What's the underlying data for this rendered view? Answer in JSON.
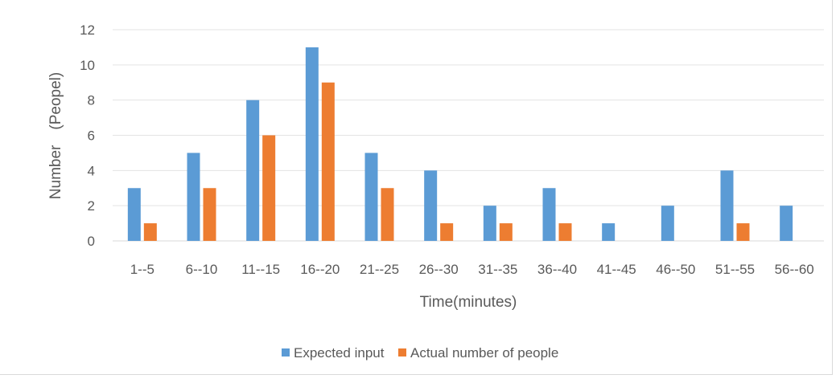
{
  "chart_data": {
    "type": "bar",
    "title": "",
    "xlabel": "Time(minutes)",
    "ylabel": "Number　(Peopel)",
    "ylim": [
      0,
      12
    ],
    "yticks": [
      0,
      2,
      4,
      6,
      8,
      10,
      12
    ],
    "grid": true,
    "legend_position": "bottom",
    "categories": [
      "1--5",
      "6--10",
      "11--15",
      "16--20",
      "21--25",
      "26--30",
      "31--35",
      "36--40",
      "41--45",
      "46--50",
      "51--55",
      "56--60"
    ],
    "series": [
      {
        "name": "Expected input",
        "color": "#5b9bd5",
        "values": [
          3,
          5,
          8,
          11,
          5,
          4,
          2,
          3,
          1,
          2,
          4,
          2
        ]
      },
      {
        "name": "Actual number of people",
        "color": "#ed7d31",
        "values": [
          1,
          3,
          6,
          9,
          3,
          1,
          1,
          1,
          0,
          0,
          1,
          0
        ]
      }
    ]
  }
}
